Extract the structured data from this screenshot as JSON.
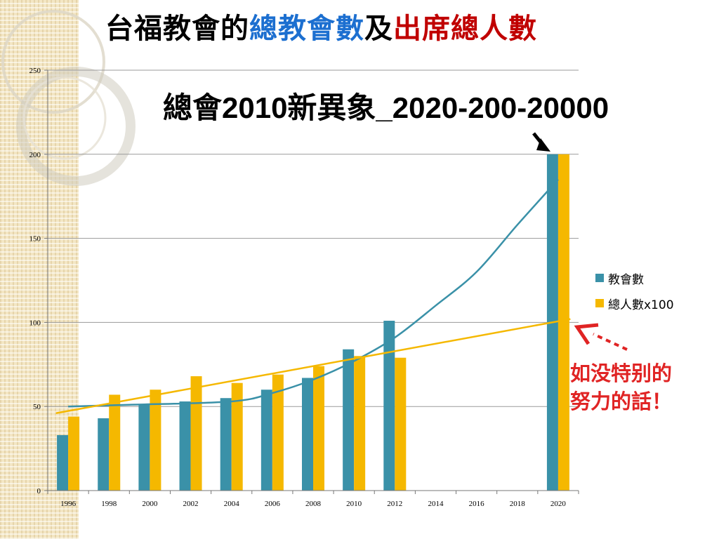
{
  "title": {
    "part1": "台福教會的",
    "part2": "總教會數",
    "part3": "及",
    "part4": "出席總人數",
    "color_black": "#000000",
    "color_blue": "#1c6fd0",
    "color_red": "#c00000"
  },
  "subtitle": "總會2010新異象_2020-200-20000",
  "note": {
    "line1": "如没特别的",
    "line2": "努力的話！",
    "color": "#e02424"
  },
  "chart_data": {
    "type": "bar",
    "categories": [
      "1996",
      "1998",
      "2000",
      "2002",
      "2004",
      "2006",
      "2008",
      "2010",
      "2012",
      "2014",
      "2016",
      "2018",
      "2020"
    ],
    "series": [
      {
        "name": "教會數",
        "color": "#3a91a8",
        "values": [
          33,
          43,
          51,
          53,
          55,
          60,
          67,
          84,
          101,
          null,
          null,
          null,
          200
        ]
      },
      {
        "name": "總人數x100",
        "color": "#f5b800",
        "values": [
          44,
          57,
          60,
          68,
          64,
          69,
          74,
          80,
          79,
          null,
          null,
          null,
          200
        ]
      }
    ],
    "ylim": [
      0,
      250
    ],
    "yticks": [
      0,
      50,
      100,
      150,
      200,
      250
    ],
    "grid": true,
    "legend_position": "right",
    "trendlines": [
      {
        "series": "教會數",
        "kind": "curve",
        "color": "#3a91a8",
        "points": [
          [
            0,
            50
          ],
          [
            1.5,
            51
          ],
          [
            4,
            53
          ],
          [
            5,
            58
          ],
          [
            6,
            66
          ],
          [
            7,
            77
          ],
          [
            8,
            91
          ],
          [
            9,
            110
          ],
          [
            10,
            130
          ],
          [
            11,
            158
          ],
          [
            12,
            185
          ]
        ]
      },
      {
        "series": "總人數x100",
        "kind": "linear",
        "color": "#f5b800",
        "points": [
          [
            -0.3,
            46
          ],
          [
            12.3,
            102
          ]
        ]
      }
    ]
  }
}
